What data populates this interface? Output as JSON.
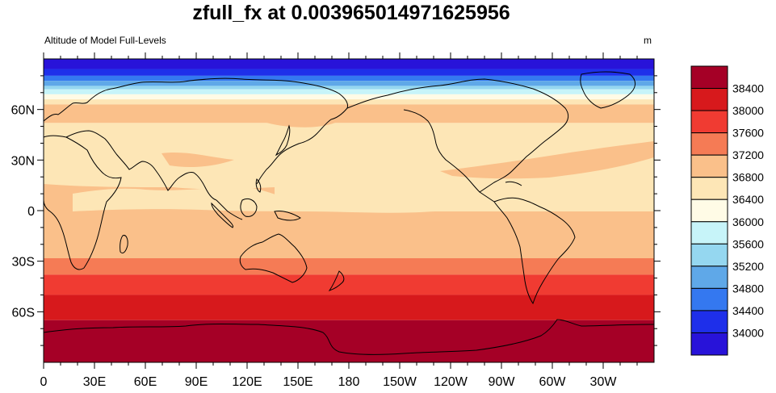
{
  "title": "zfull_fx at 0.003965014971625956",
  "subtitle_left": "Altitude of Model Full-Levels",
  "units": "m",
  "x_ticks": [
    "0",
    "30E",
    "60E",
    "90E",
    "120E",
    "150E",
    "180",
    "150W",
    "120W",
    "90W",
    "60W",
    "30W"
  ],
  "y_ticks": [
    "60N",
    "30N",
    "0",
    "30S",
    "60S"
  ],
  "colorbar": {
    "labels": [
      "38400",
      "38000",
      "37600",
      "37200",
      "36800",
      "36400",
      "36000",
      "35600",
      "35200",
      "34800",
      "34400",
      "34000"
    ],
    "colors": [
      "#a50026",
      "#d7191c",
      "#f03b32",
      "#f57b55",
      "#fac08a",
      "#fde6b6",
      "#fffbe6",
      "#c7f4f9",
      "#95d7f0",
      "#5fa8e8",
      "#3478f0",
      "#1e2fea",
      "#2813d9"
    ]
  },
  "chart_data": {
    "type": "heatmap",
    "title": "zfull_fx at 0.003965014971625956",
    "subtitle": "Altitude of Model Full-Levels",
    "units": "m",
    "x_axis": {
      "range_degrees_east": [
        0,
        360
      ],
      "tick_labels": [
        "0",
        "30E",
        "60E",
        "90E",
        "120E",
        "150E",
        "180",
        "150W",
        "120W",
        "90W",
        "60W",
        "30W"
      ]
    },
    "y_axis": {
      "range_degrees_north": [
        -90,
        90
      ],
      "tick_labels": [
        "60N",
        "30N",
        "0",
        "30S",
        "60S"
      ]
    },
    "contour_levels": [
      34000,
      34400,
      34800,
      35200,
      35600,
      36000,
      36400,
      36800,
      37200,
      37600,
      38000,
      38400
    ],
    "zonal_bands": [
      {
        "lat": [
          84,
          90
        ],
        "level_index": 12
      },
      {
        "lat": [
          80,
          84
        ],
        "level_index": 11
      },
      {
        "lat": [
          77,
          80
        ],
        "level_index": 10
      },
      {
        "lat": [
          74,
          77
        ],
        "level_index": 9
      },
      {
        "lat": [
          72,
          74
        ],
        "level_index": 8
      },
      {
        "lat": [
          69,
          72
        ],
        "level_index": 7
      },
      {
        "lat": [
          66,
          69
        ],
        "level_index": 6
      },
      {
        "lat": [
          63,
          66
        ],
        "level_index": 5
      },
      {
        "lat": [
          52,
          63
        ],
        "level_index": 4
      },
      {
        "lat": [
          -27,
          52
        ],
        "level_index": 5
      },
      {
        "lat": [
          -38,
          -27
        ],
        "level_index": 3
      },
      {
        "lat": [
          -50,
          -38
        ],
        "level_index": 2
      },
      {
        "lat": [
          -65,
          -50
        ],
        "level_index": 1
      },
      {
        "lat": [
          -90,
          -65
        ],
        "level_index": 0
      }
    ],
    "colorbar_position": "right",
    "grid": false
  }
}
